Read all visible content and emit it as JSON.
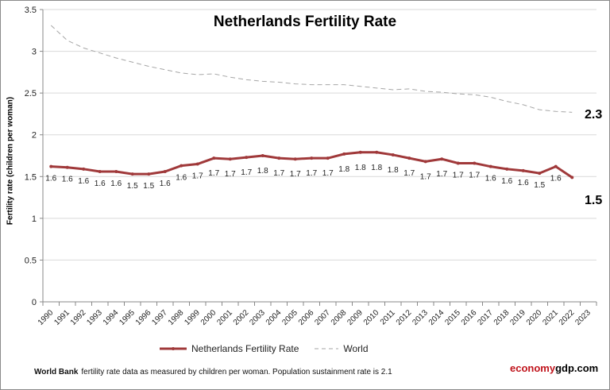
{
  "chart_data": {
    "type": "line",
    "title": "Netherlands Fertility Rate",
    "ylabel": "Fertility rate (children per woman)",
    "xlabel": "",
    "ylim": [
      0,
      3.5
    ],
    "yticks": [
      "0",
      "0.5",
      "1",
      "1.5",
      "2",
      "2.5",
      "3",
      "3.5"
    ],
    "grid": true,
    "legend_position": "bottom",
    "categories": [
      "1990",
      "1991",
      "1992",
      "1993",
      "1994",
      "1995",
      "1996",
      "1997",
      "1998",
      "1999",
      "2000",
      "2001",
      "2002",
      "2003",
      "2004",
      "2005",
      "2006",
      "2007",
      "2008",
      "2009",
      "2010",
      "2011",
      "2012",
      "2013",
      "2014",
      "2015",
      "2016",
      "2017",
      "2018",
      "2019",
      "2020",
      "2021",
      "2022",
      "2023"
    ],
    "series": [
      {
        "name": "Netherlands Fertility Rate",
        "color": "#a0393a",
        "style": "solid-markers",
        "values": [
          1.62,
          1.61,
          1.59,
          1.56,
          1.56,
          1.53,
          1.53,
          1.56,
          1.63,
          1.65,
          1.72,
          1.71,
          1.73,
          1.75,
          1.72,
          1.71,
          1.72,
          1.72,
          1.77,
          1.79,
          1.79,
          1.76,
          1.72,
          1.68,
          1.71,
          1.66,
          1.66,
          1.62,
          1.59,
          1.57,
          1.54,
          1.62,
          1.49,
          null
        ],
        "data_labels": [
          "1.6",
          "1.6",
          "1.6",
          "1.6",
          "1.6",
          "1.5",
          "1.5",
          "1.6",
          "1.6",
          "1.7",
          "1.7",
          "1.7",
          "1.7",
          "1.8",
          "1.7",
          "1.7",
          "1.7",
          "1.7",
          "1.8",
          "1.8",
          "1.8",
          "1.8",
          "1.7",
          "1.7",
          "1.7",
          "1.7",
          "1.7",
          "1.6",
          "1.6",
          "1.6",
          "1.5",
          "1.6"
        ],
        "end_label": "1.5"
      },
      {
        "name": "World",
        "color": "#a6a6a6",
        "style": "dashed",
        "values": [
          3.31,
          3.13,
          3.04,
          2.98,
          2.92,
          2.87,
          2.82,
          2.78,
          2.74,
          2.72,
          2.73,
          2.69,
          2.66,
          2.64,
          2.63,
          2.61,
          2.6,
          2.6,
          2.6,
          2.58,
          2.56,
          2.54,
          2.55,
          2.52,
          2.51,
          2.49,
          2.48,
          2.45,
          2.4,
          2.36,
          2.3,
          2.28,
          2.27,
          null
        ],
        "end_label": "2.3"
      }
    ]
  },
  "footer": {
    "source": "World Bank",
    "note": "fertility rate data as measured by children per woman.  Population sustainment rate is 2.1"
  },
  "brand": {
    "part1": "economy",
    "part2": "gdp.com",
    "color1": "#c0141c",
    "color2": "#000000"
  }
}
